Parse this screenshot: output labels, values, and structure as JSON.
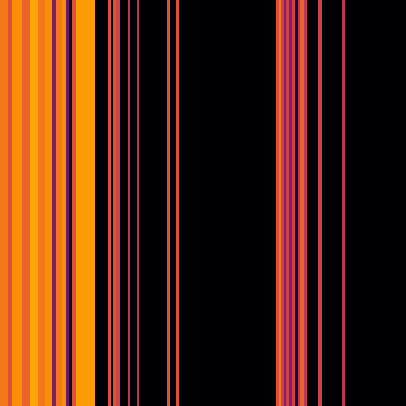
{
  "chart_data": {
    "type": "heatmap",
    "x_edges": [
      0,
      8,
      12,
      22,
      30,
      38,
      45,
      52,
      56,
      62,
      66,
      69,
      72,
      76,
      95,
      108,
      111,
      113,
      116,
      120,
      128,
      130,
      137,
      139,
      167,
      170,
      176,
      179,
      276,
      279,
      281,
      284,
      286,
      289,
      292,
      295,
      298,
      300,
      304,
      307,
      318,
      322,
      342,
      345,
      406
    ],
    "values": [
      0.7,
      0.6,
      0.75,
      0.65,
      0.8,
      0.7,
      0.75,
      0.35,
      0.7,
      0.75,
      0.3,
      0.05,
      0.6,
      0.78,
      0,
      0.6,
      0,
      0.6,
      0.55,
      0,
      0.5,
      0,
      0.5,
      0,
      0.6,
      0,
      0.6,
      0,
      0.6,
      0.7,
      0.55,
      0.35,
      0.55,
      0.35,
      0.55,
      0.1,
      0.5,
      0.65,
      0.5,
      0,
      0.55,
      0,
      0.5,
      0
    ],
    "xlim": [
      0,
      406
    ],
    "ylim": [
      0,
      406
    ],
    "color": "inferno",
    "color_range": [
      0,
      1
    ],
    "tick_labels": false
  }
}
